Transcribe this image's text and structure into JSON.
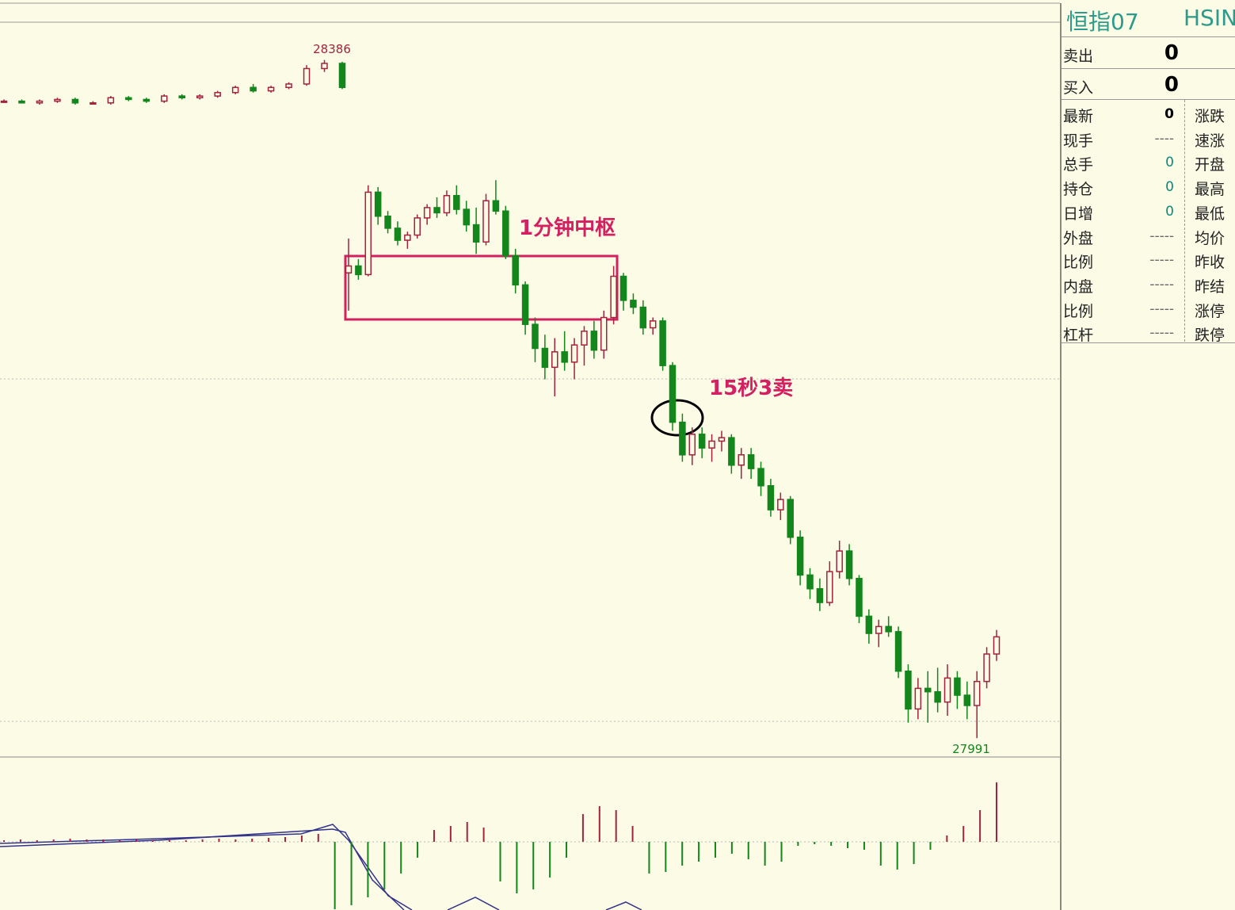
{
  "chart_data": {
    "type": "candlestick",
    "ylim": [
      27980,
      28408
    ],
    "up_color": "#a3233f",
    "down_color": "#13861c",
    "series": [
      {
        "values": [
          [
            28362,
            28363,
            28361,
            28362
          ],
          [
            28362,
            28363,
            28361,
            28361
          ],
          [
            28361,
            28363,
            28360,
            28362
          ],
          [
            28362,
            28364,
            28361,
            28363
          ],
          [
            28363,
            28364,
            28360,
            28361
          ],
          [
            28361,
            28362,
            28360,
            28361
          ],
          [
            28361,
            28365,
            28360,
            28364
          ],
          [
            28364,
            28365,
            28362,
            28363
          ],
          [
            28363,
            28364,
            28361,
            28362
          ],
          [
            28362,
            28366,
            28361,
            28365
          ],
          [
            28365,
            28366,
            28363,
            28364
          ],
          [
            28364,
            28366,
            28363,
            28365
          ],
          [
            28365,
            28368,
            28364,
            28367
          ],
          [
            28367,
            28371,
            28366,
            28370
          ],
          [
            28370,
            28372,
            28367,
            28368
          ],
          [
            28368,
            28371,
            28367,
            28370
          ],
          [
            28370,
            28373,
            28369,
            28372
          ],
          [
            28372,
            28383,
            28371,
            28381
          ],
          [
            28381,
            28386,
            28379,
            28384
          ],
          [
            28384,
            28385,
            28369,
            28370
          ]
        ]
      },
      {
        "values": [
          [
            28262,
            28282,
            28240,
            28266
          ],
          [
            28266,
            28270,
            28258,
            28261
          ],
          [
            28261,
            28313,
            28260,
            28309
          ],
          [
            28309,
            28312,
            28290,
            28295
          ],
          [
            28295,
            28298,
            28285,
            28288
          ],
          [
            28288,
            28292,
            28278,
            28281
          ],
          [
            28281,
            28286,
            28276,
            28284
          ],
          [
            28284,
            28296,
            28282,
            28294
          ],
          [
            28294,
            28302,
            28290,
            28300
          ],
          [
            28300,
            28306,
            28294,
            28297
          ],
          [
            28297,
            28310,
            28295,
            28307
          ],
          [
            28307,
            28313,
            28296,
            28299
          ],
          [
            28299,
            28304,
            28286,
            28290
          ],
          [
            28290,
            28300,
            28273,
            28280
          ],
          [
            28280,
            28308,
            28278,
            28304
          ],
          [
            28304,
            28316,
            28296,
            28298
          ],
          [
            28298,
            28301,
            28270,
            28272
          ],
          [
            28272,
            28276,
            28250,
            28255
          ],
          [
            28255,
            28257,
            28226,
            28232
          ],
          [
            28232,
            28236,
            28210,
            28218
          ],
          [
            28218,
            28226,
            28200,
            28207
          ],
          [
            28207,
            28224,
            28190,
            28216
          ],
          [
            28216,
            28228,
            28205,
            28210
          ],
          [
            28210,
            28224,
            28200,
            28220
          ],
          [
            28220,
            28231,
            28208,
            28228
          ],
          [
            28228,
            28234,
            28212,
            28217
          ],
          [
            28217,
            28240,
            28212,
            28236
          ],
          [
            28236,
            28266,
            28232,
            28260
          ],
          [
            28260,
            28262,
            28240,
            28246
          ],
          [
            28246,
            28250,
            28238,
            28242
          ],
          [
            28242,
            28246,
            28226,
            28230
          ],
          [
            28230,
            28236,
            28226,
            28234
          ],
          [
            28234,
            28236,
            28205,
            28208
          ],
          [
            28208,
            28210,
            28170,
            28175
          ],
          [
            28175,
            28180,
            28152,
            28156
          ],
          [
            28156,
            28172,
            28150,
            28168
          ],
          [
            28168,
            28172,
            28154,
            28160
          ],
          [
            28160,
            28168,
            28152,
            28164
          ],
          [
            28164,
            28170,
            28158,
            28166
          ],
          [
            28166,
            28168,
            28145,
            28150
          ],
          [
            28150,
            28160,
            28142,
            28156
          ],
          [
            28156,
            28160,
            28142,
            28148
          ],
          [
            28148,
            28152,
            28132,
            28138
          ],
          [
            28138,
            28142,
            28120,
            28124
          ],
          [
            28124,
            28134,
            28118,
            28130
          ],
          [
            28130,
            28132,
            28104,
            28108
          ],
          [
            28108,
            28112,
            28080,
            28086
          ],
          [
            28086,
            28090,
            28072,
            28078
          ],
          [
            28078,
            28084,
            28065,
            28070
          ],
          [
            28070,
            28094,
            28068,
            28088
          ],
          [
            28088,
            28106,
            28084,
            28100
          ],
          [
            28100,
            28104,
            28080,
            28084
          ],
          [
            28084,
            28086,
            28058,
            28062
          ],
          [
            28062,
            28066,
            28046,
            28052
          ],
          [
            28052,
            28060,
            28044,
            28056
          ],
          [
            28056,
            28062,
            28050,
            28053
          ],
          [
            28053,
            28056,
            28026,
            28030
          ],
          [
            28030,
            28034,
            28000,
            28008
          ],
          [
            28008,
            28026,
            28002,
            28020
          ],
          [
            28020,
            28030,
            28000,
            28018
          ],
          [
            28018,
            28032,
            28006,
            28012
          ],
          [
            28012,
            28034,
            28004,
            28026
          ],
          [
            28026,
            28030,
            28008,
            28016
          ],
          [
            28016,
            28024,
            28002,
            28010
          ],
          [
            28010,
            28030,
            27991,
            28024
          ],
          [
            28024,
            28044,
            28020,
            28040
          ],
          [
            28040,
            28054,
            28036,
            28050
          ]
        ]
      }
    ],
    "high_label": 28386,
    "low_label": 27991,
    "annotations": [
      "1分钟中枢",
      "15秒3卖"
    ],
    "macd": {
      "ylim": [
        -86,
        86
      ],
      "values": [
        2,
        3,
        2,
        3,
        4,
        3,
        3,
        2,
        3,
        2,
        3,
        2,
        3,
        4,
        3,
        4,
        5,
        6,
        8,
        10,
        -85,
        -80,
        -70,
        -60,
        -40,
        -20,
        15,
        20,
        25,
        18,
        -50,
        -65,
        -60,
        -45,
        -20,
        35,
        45,
        40,
        20,
        -40,
        -38,
        -30,
        -25,
        -20,
        -15,
        -22,
        -30,
        -25,
        -5,
        -3,
        -5,
        -8,
        -10,
        -30,
        -35,
        -28,
        -10,
        8,
        20,
        40,
        75
      ]
    }
  },
  "quote": {
    "title": "恒指07",
    "code": "HSIN",
    "sell": [
      "卖出",
      0
    ],
    "buy": [
      "买入",
      0
    ],
    "rows": [
      [
        "最新",
        0,
        "涨跌"
      ],
      [
        "现手",
        "----",
        "速涨"
      ],
      [
        "总手",
        0,
        "开盘"
      ],
      [
        "持仓",
        0,
        "最高"
      ],
      [
        "日增",
        0,
        "最低"
      ],
      [
        "外盘",
        "-----",
        "均价"
      ],
      [
        "比例",
        "-----",
        "昨收"
      ],
      [
        "内盘",
        "-----",
        "昨结"
      ],
      [
        "比例",
        "-----",
        "涨停"
      ],
      [
        "杠杆",
        "-----",
        "跌停"
      ]
    ]
  }
}
